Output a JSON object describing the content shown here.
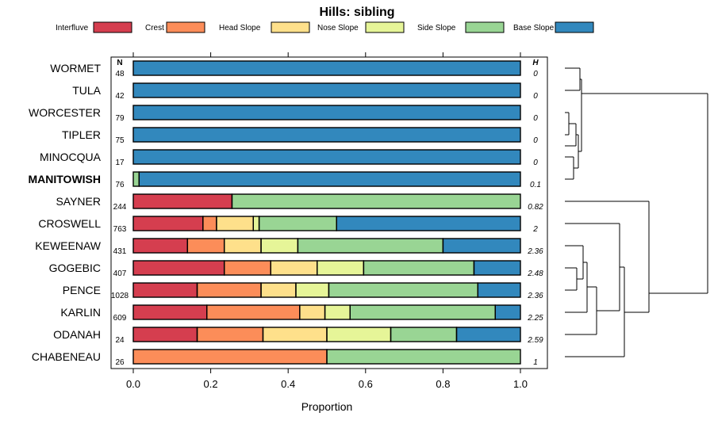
{
  "chart_data": {
    "type": "bar",
    "stacked": true,
    "orientation": "horizontal",
    "title": "Hills: sibling",
    "xlabel": "Proportion",
    "ylabel": "",
    "xlim": [
      0,
      1
    ],
    "xticks": [
      "0.0",
      "0.2",
      "0.4",
      "0.6",
      "0.8",
      "1.0"
    ],
    "n_header": "N",
    "h_header": "H",
    "legend_position": "top",
    "colors": {
      "Interfluve": "#d53e4f",
      "Crest": "#fc8d59",
      "Head Slope": "#fee08b",
      "Nose Slope": "#e6f598",
      "Side Slope": "#99d594",
      "Base Slope": "#3288bd"
    },
    "series_names": [
      "Interfluve",
      "Crest",
      "Head Slope",
      "Nose Slope",
      "Side Slope",
      "Base Slope"
    ],
    "categories": [
      {
        "name": "WORMET",
        "n": "48",
        "h": "0",
        "bold": false,
        "values": [
          0,
          0,
          0,
          0,
          0,
          1.0
        ]
      },
      {
        "name": "TULA",
        "n": "42",
        "h": "0",
        "bold": false,
        "values": [
          0,
          0,
          0,
          0,
          0,
          1.0
        ]
      },
      {
        "name": "WORCESTER",
        "n": "79",
        "h": "0",
        "bold": false,
        "values": [
          0,
          0,
          0,
          0,
          0,
          1.0
        ]
      },
      {
        "name": "TIPLER",
        "n": "75",
        "h": "0",
        "bold": false,
        "values": [
          0,
          0,
          0,
          0,
          0,
          1.0
        ]
      },
      {
        "name": "MINOCQUA",
        "n": "17",
        "h": "0",
        "bold": false,
        "values": [
          0,
          0,
          0,
          0,
          0,
          1.0
        ]
      },
      {
        "name": "MANITOWISH",
        "n": "76",
        "h": "0.1",
        "bold": true,
        "values": [
          0,
          0,
          0,
          0,
          0.015,
          0.985
        ]
      },
      {
        "name": "SAYNER",
        "n": "244",
        "h": "0.82",
        "bold": false,
        "values": [
          0.255,
          0,
          0,
          0,
          0.745,
          0
        ]
      },
      {
        "name": "CROSWELL",
        "n": "763",
        "h": "2",
        "bold": false,
        "values": [
          0.18,
          0.035,
          0.095,
          0.015,
          0.2,
          0.475
        ]
      },
      {
        "name": "KEWEENAW",
        "n": "431",
        "h": "2.36",
        "bold": false,
        "values": [
          0.14,
          0.095,
          0.095,
          0.095,
          0.375,
          0.2
        ]
      },
      {
        "name": "GOGEBIC",
        "n": "407",
        "h": "2.48",
        "bold": false,
        "values": [
          0.235,
          0.12,
          0.12,
          0.12,
          0.285,
          0.12
        ]
      },
      {
        "name": "PENCE",
        "n": "1028",
        "h": "2.36",
        "bold": false,
        "values": [
          0.165,
          0.165,
          0.09,
          0.085,
          0.385,
          0.11
        ]
      },
      {
        "name": "KARLIN",
        "n": "609",
        "h": "2.25",
        "bold": false,
        "values": [
          0.19,
          0.24,
          0.065,
          0.065,
          0.375,
          0.065
        ]
      },
      {
        "name": "ODANAH",
        "n": "24",
        "h": "2.59",
        "bold": false,
        "values": [
          0.165,
          0.17,
          0.165,
          0.165,
          0.17,
          0.165
        ]
      },
      {
        "name": "CHABENEAU",
        "n": "26",
        "h": "1",
        "bold": false,
        "values": [
          0,
          0.5,
          0,
          0,
          0.5,
          0
        ]
      }
    ]
  }
}
